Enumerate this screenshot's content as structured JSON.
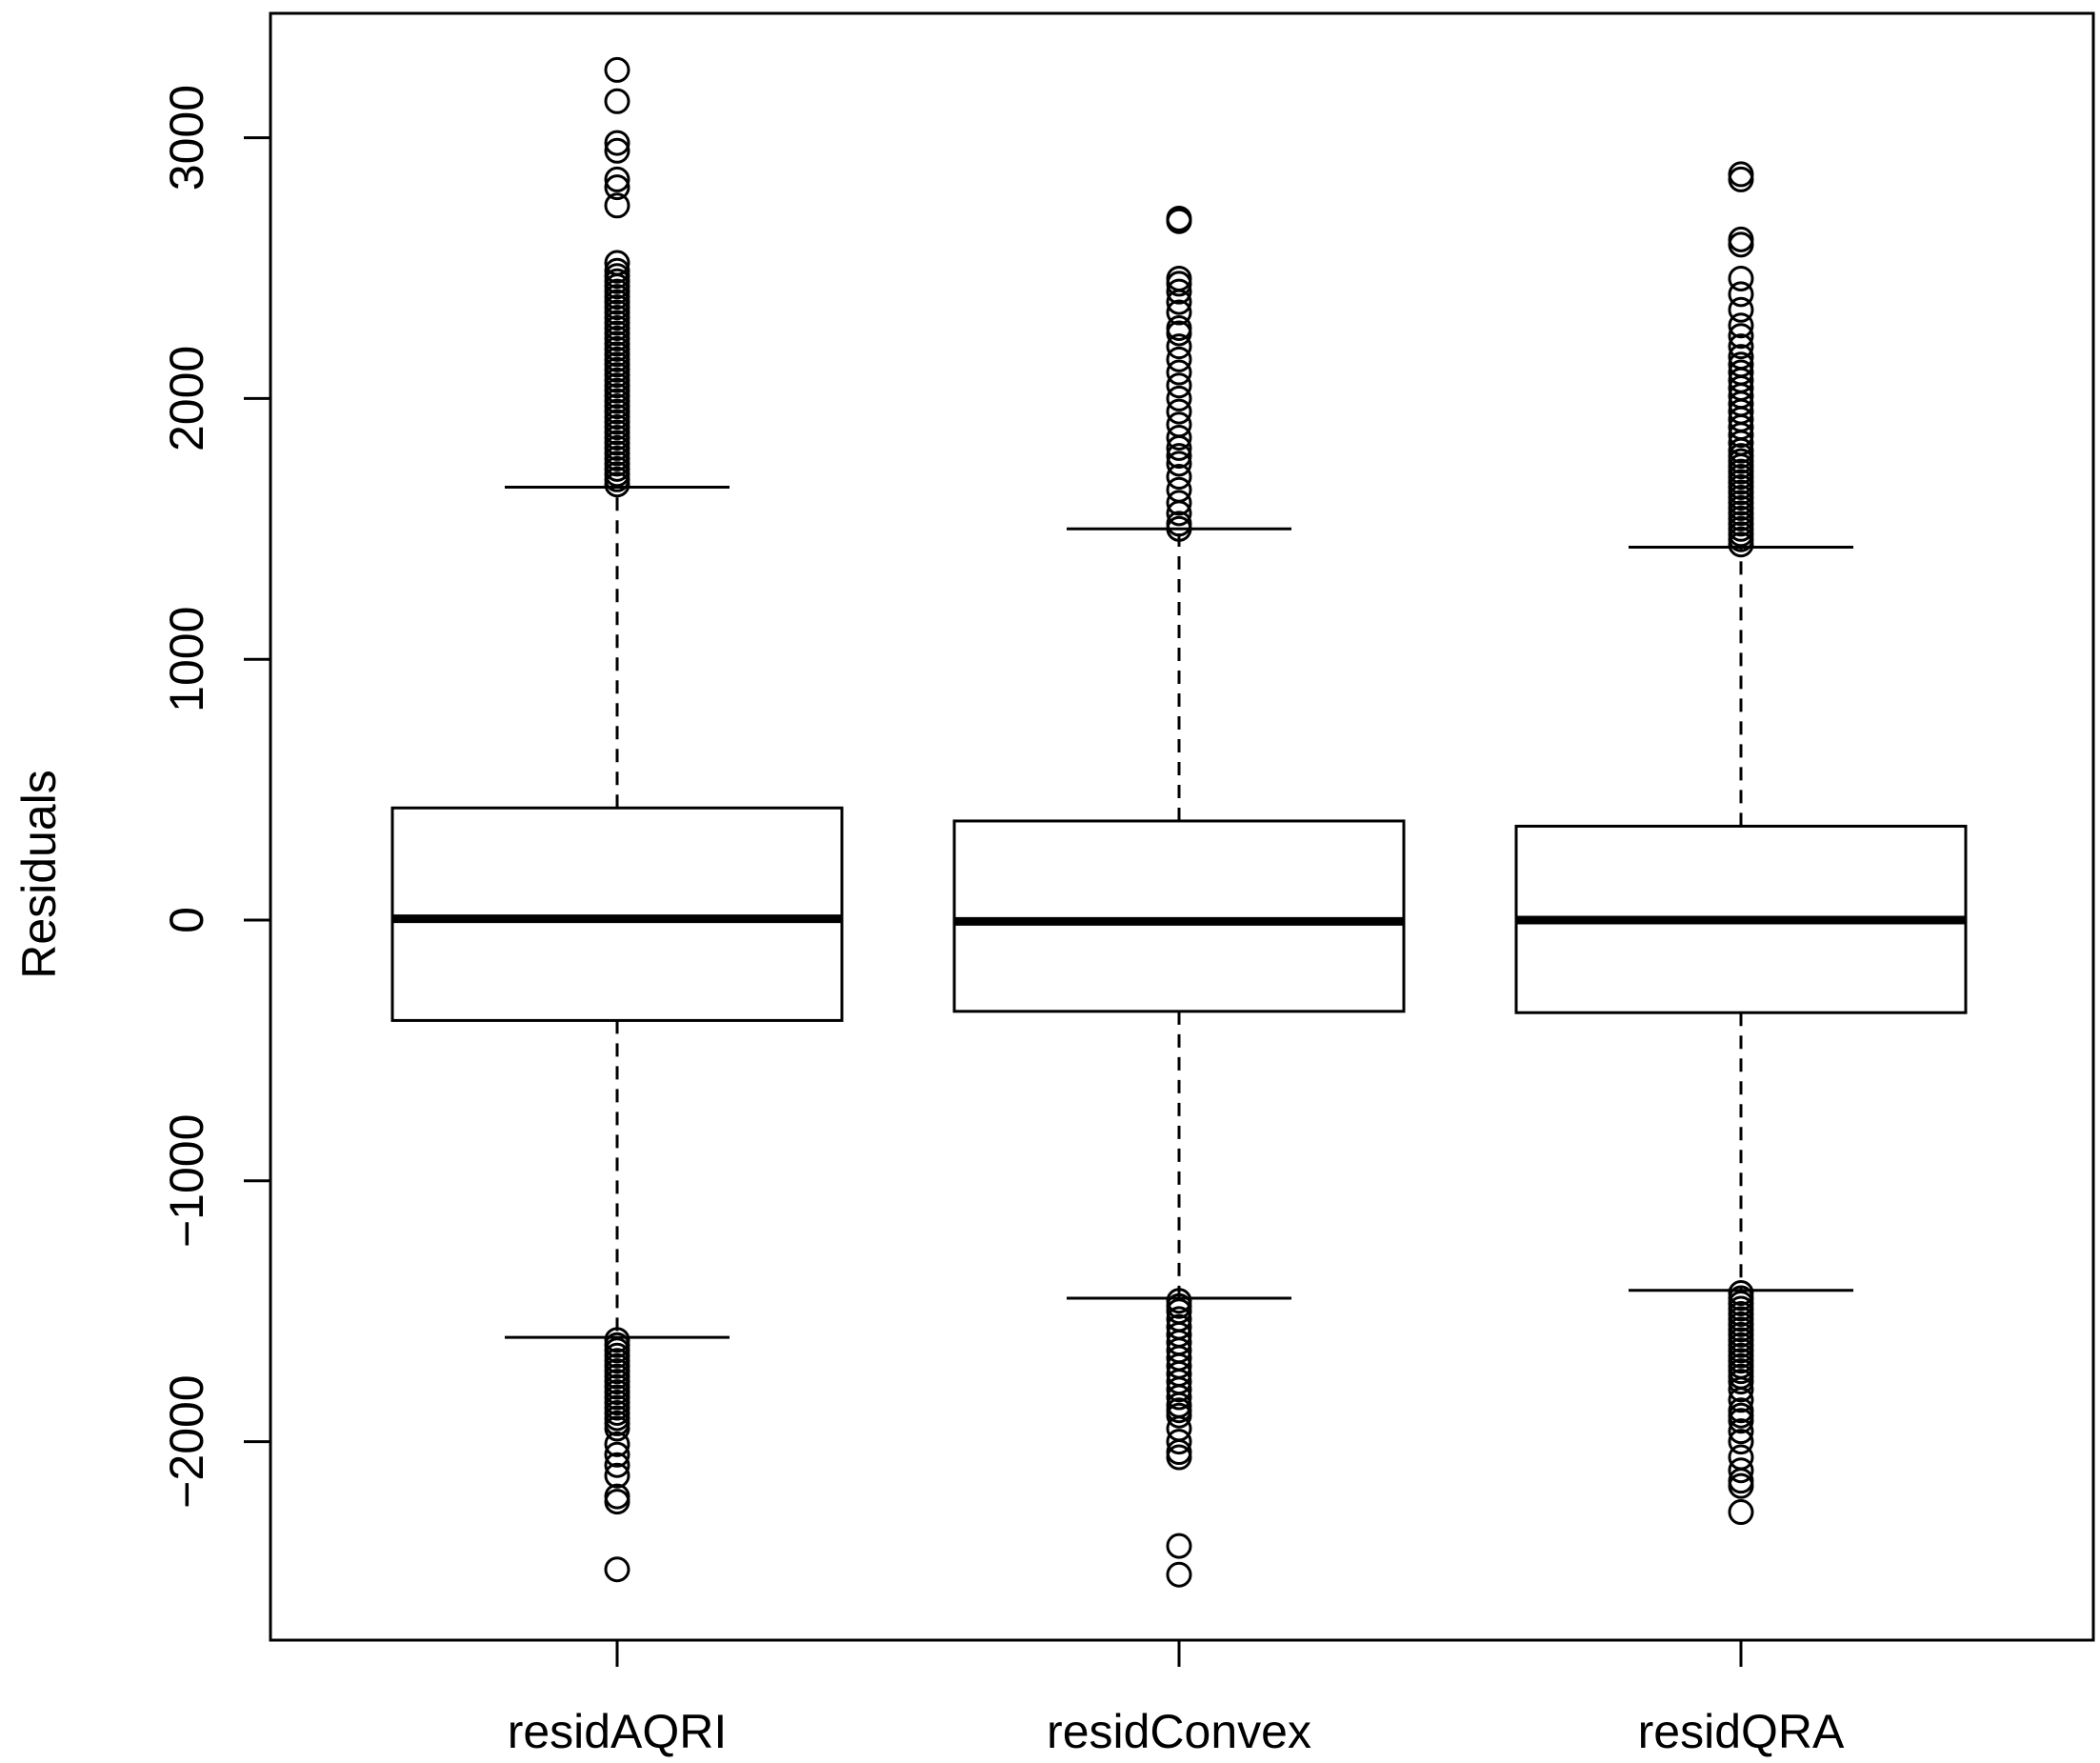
{
  "chart_data": {
    "type": "boxplot",
    "title": "",
    "xlabel": "",
    "ylabel": "Residuals",
    "ylim": [
      -2700,
      3420
    ],
    "yticks": [
      -2000,
      -1000,
      0,
      1000,
      2000,
      3000
    ],
    "ytick_labels": [
      "−2000",
      "−1000",
      "0",
      "1000",
      "2000",
      "3000"
    ],
    "categories": [
      "residAQRI",
      "residConvex",
      "residQRA"
    ],
    "boxes": [
      {
        "name": "residAQRI",
        "whisker_low": -1600,
        "q1": -385,
        "median": 5,
        "q3": 430,
        "whisker_high": 1660,
        "outliers_high": [
          1670,
          1690,
          1710,
          1730,
          1750,
          1770,
          1790,
          1810,
          1830,
          1850,
          1870,
          1890,
          1910,
          1930,
          1950,
          1970,
          1990,
          2010,
          2030,
          2050,
          2070,
          2090,
          2110,
          2130,
          2150,
          2170,
          2190,
          2210,
          2230,
          2250,
          2270,
          2290,
          2310,
          2330,
          2350,
          2370,
          2390,
          2410,
          2430,
          2450,
          2470,
          2490,
          2520,
          2740,
          2810,
          2840,
          2950,
          2980,
          3140,
          3260
        ],
        "outliers_low": [
          -1610,
          -1630,
          -1650,
          -1670,
          -1690,
          -1710,
          -1730,
          -1750,
          -1770,
          -1790,
          -1810,
          -1830,
          -1850,
          -1870,
          -1890,
          -1910,
          -1930,
          -1950,
          -2010,
          -2050,
          -2090,
          -2130,
          -2210,
          -2230,
          -2490
        ]
      },
      {
        "name": "residConvex",
        "whisker_low": -1450,
        "q1": -350,
        "median": -5,
        "q3": 380,
        "whisker_high": 1500,
        "outliers_high": [
          1500,
          1520,
          1560,
          1600,
          1650,
          1700,
          1750,
          1780,
          1810,
          1850,
          1900,
          1950,
          2000,
          2050,
          2100,
          2150,
          2200,
          2250,
          2270,
          2330,
          2370,
          2410,
          2440,
          2460,
          2680,
          2690
        ],
        "outliers_low": [
          -1460,
          -1480,
          -1500,
          -1530,
          -1560,
          -1590,
          -1620,
          -1650,
          -1680,
          -1710,
          -1740,
          -1770,
          -1800,
          -1830,
          -1860,
          -1880,
          -1900,
          -1950,
          -2000,
          -2040,
          -2060,
          -2400,
          -2510
        ]
      },
      {
        "name": "residQRA",
        "whisker_low": -1420,
        "q1": -355,
        "median": 0,
        "q3": 360,
        "whisker_high": 1430,
        "outliers_high": [
          1440,
          1460,
          1480,
          1500,
          1520,
          1540,
          1560,
          1580,
          1600,
          1620,
          1640,
          1660,
          1680,
          1700,
          1720,
          1740,
          1760,
          1780,
          1800,
          1830,
          1860,
          1890,
          1920,
          1950,
          1980,
          2010,
          2040,
          2070,
          2100,
          2130,
          2160,
          2200,
          2240,
          2280,
          2340,
          2400,
          2460,
          2590,
          2610,
          2840,
          2860
        ],
        "outliers_low": [
          -1430,
          -1450,
          -1470,
          -1490,
          -1510,
          -1530,
          -1550,
          -1570,
          -1590,
          -1610,
          -1630,
          -1650,
          -1670,
          -1690,
          -1710,
          -1730,
          -1750,
          -1770,
          -1800,
          -1840,
          -1880,
          -1900,
          -1920,
          -1960,
          -2000,
          -2060,
          -2110,
          -2150,
          -2170,
          -2270
        ]
      }
    ]
  }
}
